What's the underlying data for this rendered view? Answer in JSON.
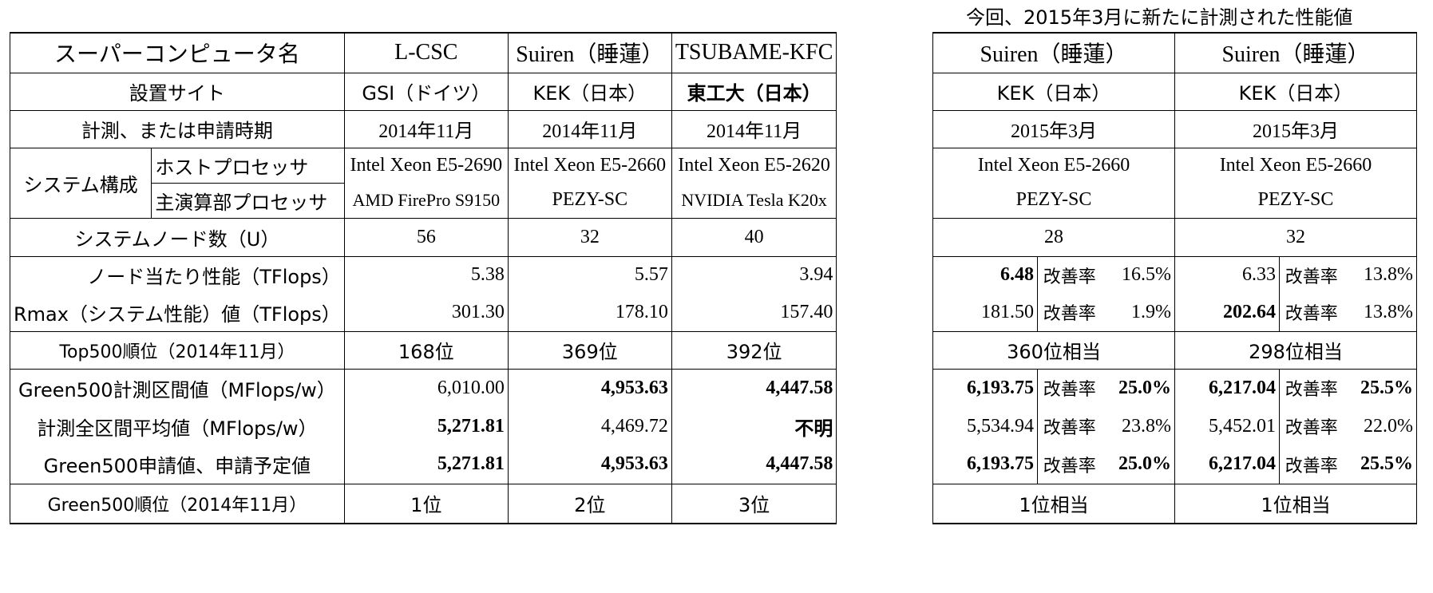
{
  "caption": "今回、2015年3月に新たに計測された性能値",
  "header": {
    "label": "スーパーコンピュータ名",
    "cols": [
      "L-CSC",
      "Suiren（睡蓮）",
      "TSUBAME-KFC",
      "Suiren（睡蓮）",
      "Suiren（睡蓮）"
    ]
  },
  "rows": {
    "site": {
      "label": "設置サイト",
      "values": [
        "GSI（ドイツ）",
        "KEK（日本）",
        "東工大（日本）",
        "KEK（日本）",
        "KEK（日本）"
      ]
    },
    "period": {
      "label": "計測、または申請時期",
      "values": [
        "2014年11月",
        "2014年11月",
        "2014年11月",
        "2015年3月",
        "2015年3月"
      ]
    },
    "system": {
      "label": "システム構成",
      "host_label": "ホストプロセッサ",
      "host": [
        "Intel Xeon E5-2690",
        "Intel Xeon E5-2660",
        "Intel Xeon E5-2620",
        "Intel Xeon E5-2660",
        "Intel Xeon E5-2660"
      ],
      "main_label": "主演算部プロセッサ",
      "main": [
        "AMD FirePro S9150",
        "PEZY-SC",
        "NVIDIA Tesla K20x",
        "PEZY-SC",
        "PEZY-SC"
      ]
    },
    "nodes": {
      "label": "システムノード数（U）",
      "values": [
        "56",
        "32",
        "40",
        "28",
        "32"
      ]
    },
    "node_perf": {
      "label": "ノード当たり性能（TFlops）",
      "values": [
        "5.38",
        "5.57",
        "3.94",
        "6.48",
        "6.33"
      ],
      "improve_label": "改善率",
      "improve": [
        "16.5%",
        "13.8%"
      ]
    },
    "rmax": {
      "label": "Rmax（システム性能）値（TFlops）",
      "values": [
        "301.30",
        "178.10",
        "157.40",
        "181.50",
        "202.64"
      ],
      "improve_label": "改善率",
      "improve": [
        "1.9%",
        "13.8%"
      ]
    },
    "top500": {
      "label": "Top500順位（2014年11月）",
      "values": [
        "168位",
        "369位",
        "392位",
        "360位相当",
        "298位相当"
      ]
    },
    "g500_interval": {
      "label": "Green500計測区間値（MFlops/w）",
      "values": [
        "6,010.00",
        "4,953.63",
        "4,447.58",
        "6,193.75",
        "6,217.04"
      ],
      "improve_label": "改善率",
      "improve": [
        "25.0%",
        "25.5%"
      ]
    },
    "avg": {
      "label": "計測全区間平均値（MFlops/w）",
      "values": [
        "5,271.81",
        "4,469.72",
        "不明",
        "5,534.94",
        "5,452.01"
      ],
      "improve_label": "改善率",
      "improve": [
        "23.8%",
        "22.0%"
      ]
    },
    "g500_submit": {
      "label": "Green500申請値、申請予定値",
      "values": [
        "5,271.81",
        "4,953.63",
        "4,447.58",
        "6,193.75",
        "6,217.04"
      ],
      "improve_label": "改善率",
      "improve": [
        "25.0%",
        "25.5%"
      ]
    },
    "g500_rank": {
      "label": "Green500順位（2014年11月）",
      "values": [
        "1位",
        "2位",
        "3位",
        "1位相当",
        "1位相当"
      ]
    }
  }
}
